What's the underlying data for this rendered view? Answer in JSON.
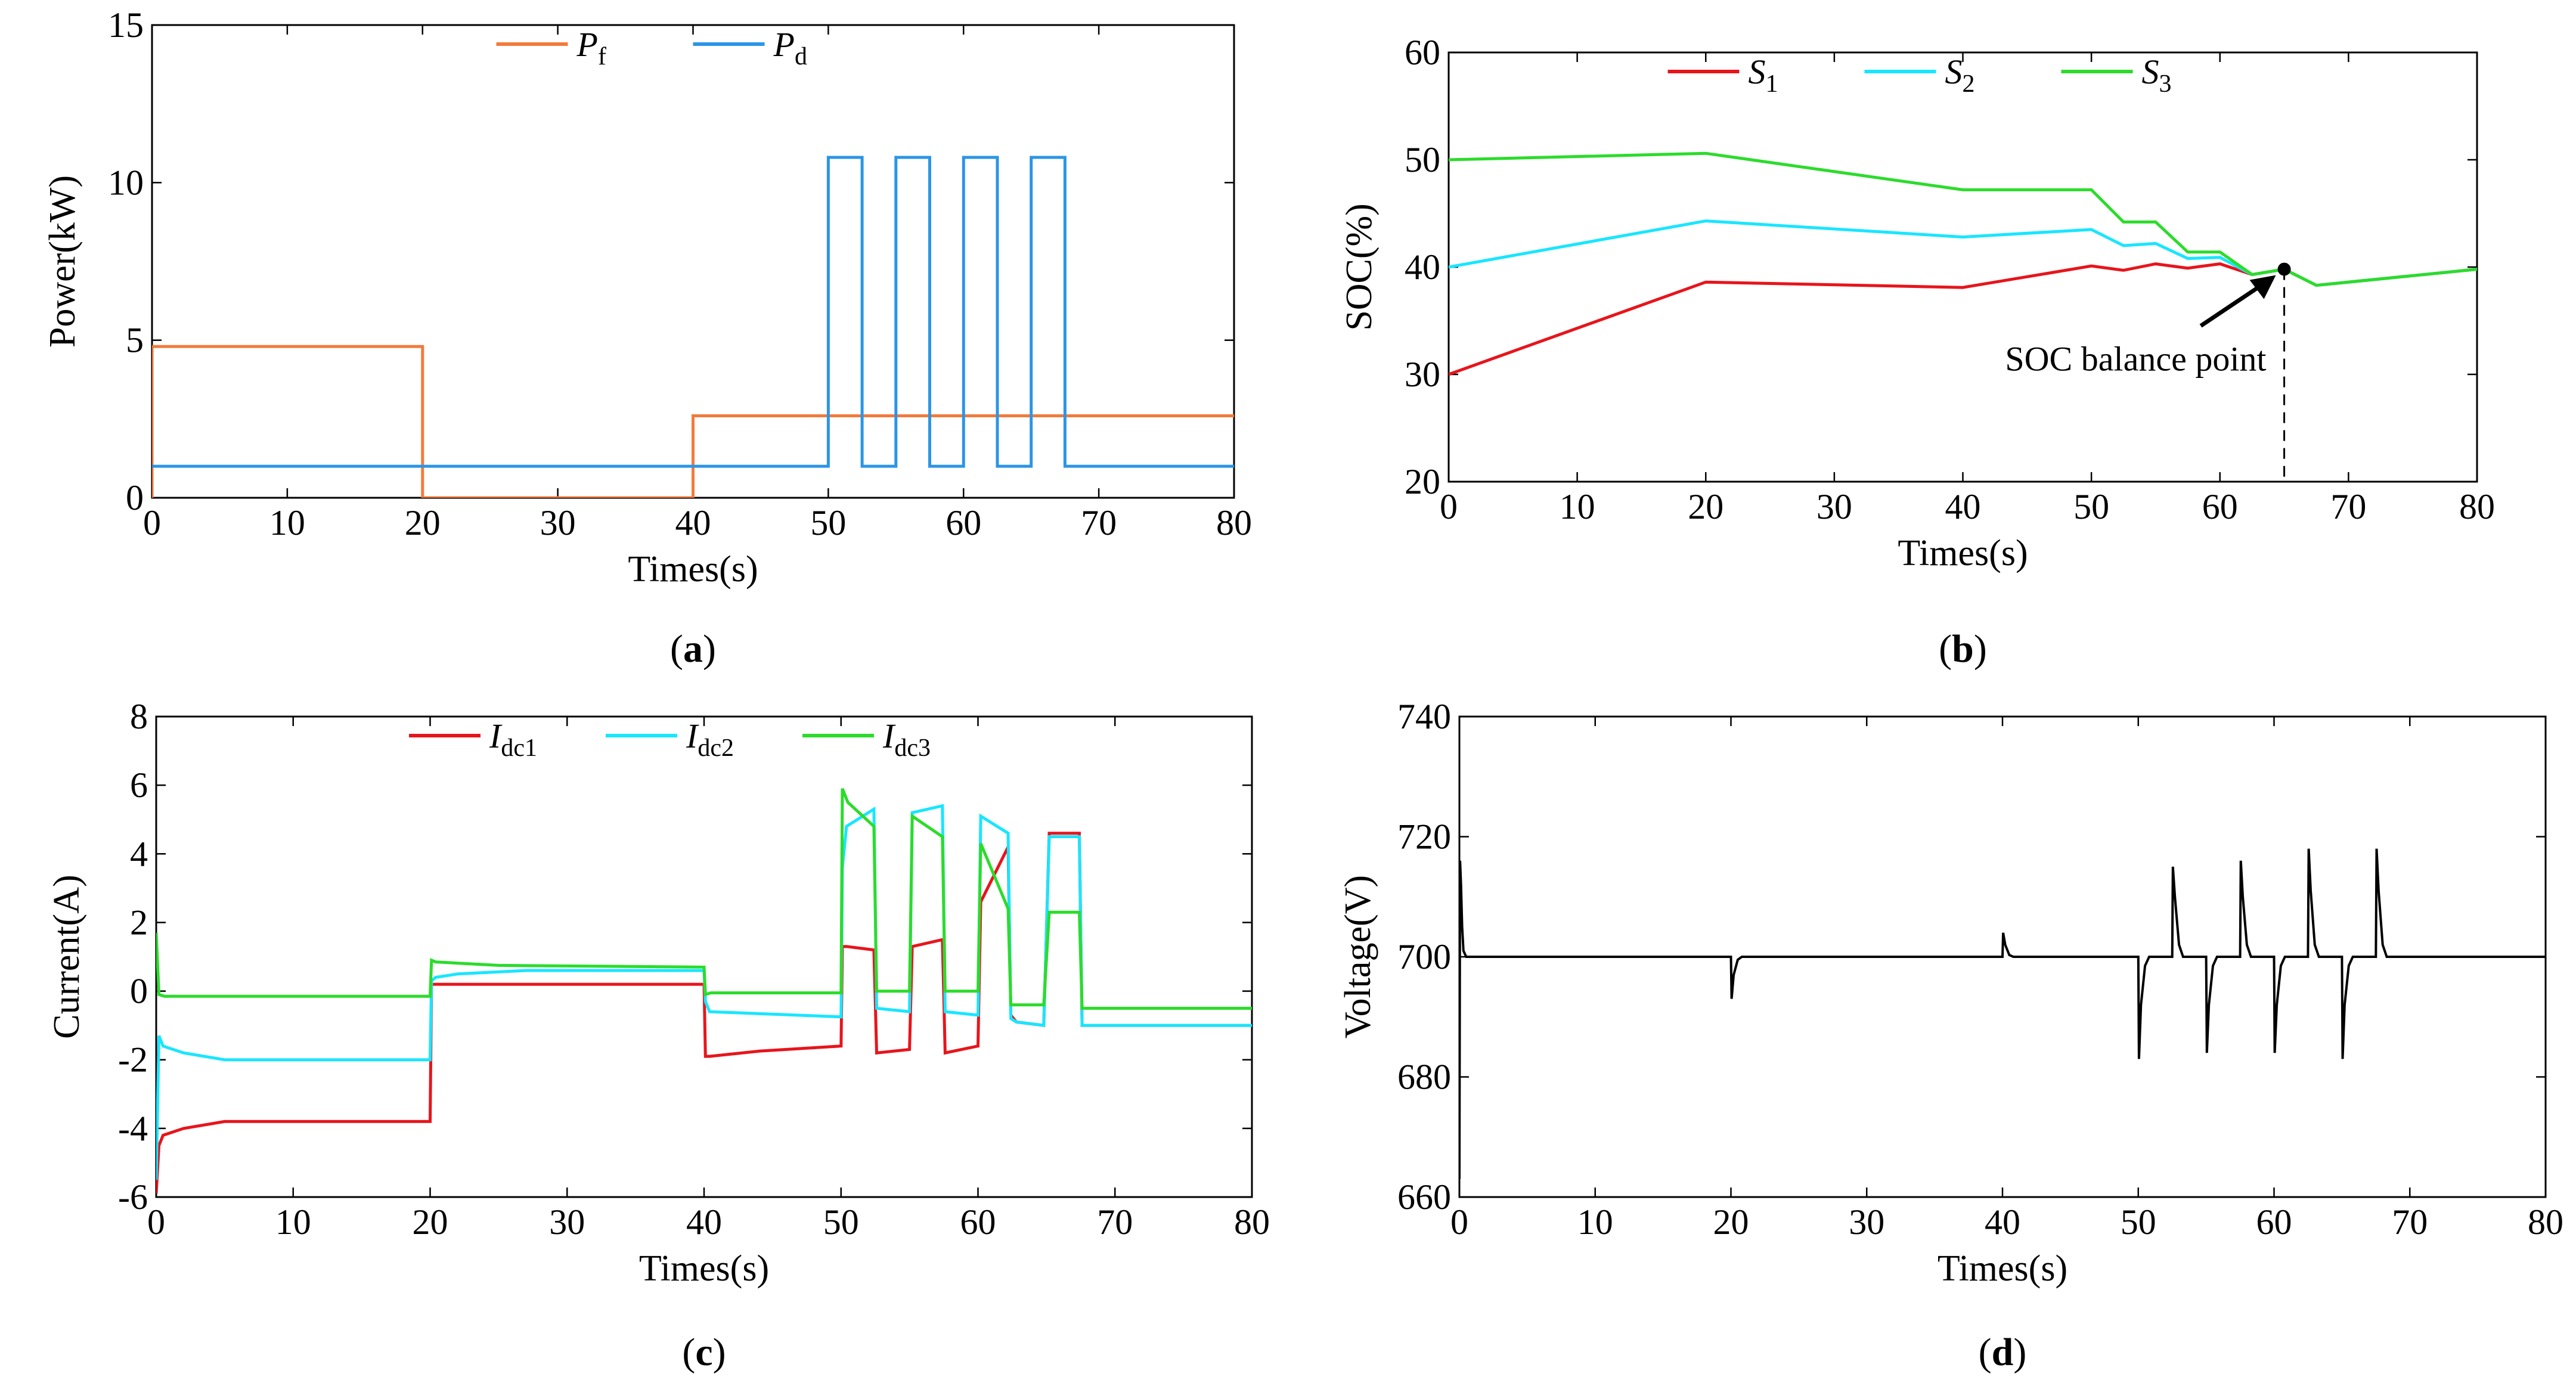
{
  "colors": {
    "orange": "#f37a3c",
    "blue": "#2b95e6",
    "red": "#e8141b",
    "cyan": "#18e6ff",
    "green": "#2bdc2b",
    "black": "#000000"
  },
  "chart_data": [
    {
      "id": "a",
      "type": "line",
      "caption": "(a)",
      "xlabel": "Times(s)",
      "ylabel": "Power(kW)",
      "xlim": [
        0,
        80
      ],
      "ylim": [
        0,
        15
      ],
      "xticks": [
        "0",
        "10",
        "20",
        "30",
        "40",
        "50",
        "60",
        "70",
        "80"
      ],
      "yticks": [
        "0",
        "5",
        "10",
        "15"
      ],
      "legend_position": "top-center",
      "series": [
        {
          "name": "P",
          "sub": "f",
          "color": "#f37a3c",
          "x": [
            0,
            0,
            20,
            20,
            40,
            40,
            80
          ],
          "y": [
            0,
            4.8,
            4.8,
            0,
            0,
            2.6,
            2.6
          ]
        },
        {
          "name": "P",
          "sub": "d",
          "color": "#2b95e6",
          "x": [
            0,
            50,
            50,
            52.5,
            52.5,
            55,
            55,
            57.5,
            57.5,
            60,
            60,
            62.5,
            62.5,
            65,
            65,
            67.5,
            67.5,
            80
          ],
          "y": [
            1,
            1,
            10.8,
            10.8,
            1,
            1,
            10.8,
            10.8,
            1,
            1,
            10.8,
            10.8,
            1,
            1,
            10.8,
            10.8,
            1,
            1
          ]
        }
      ]
    },
    {
      "id": "b",
      "type": "line",
      "caption": "(b)",
      "xlabel": "Times(s)",
      "ylabel": "SOC(%)",
      "xlim": [
        0,
        80
      ],
      "ylim": [
        20,
        60
      ],
      "xticks": [
        "0",
        "10",
        "20",
        "30",
        "40",
        "50",
        "60",
        "70",
        "80"
      ],
      "yticks": [
        "20",
        "30",
        "40",
        "50",
        "60"
      ],
      "legend_position": "top-center",
      "annotation": {
        "text": "SOC balance point",
        "x": 65,
        "y": 39.8
      },
      "series": [
        {
          "name": "S",
          "sub": "1",
          "color": "#e8141b",
          "x": [
            0,
            20,
            40,
            50,
            52.5,
            55,
            57.5,
            60,
            62.5,
            65,
            67.5,
            80
          ],
          "y": [
            30,
            38.6,
            38.1,
            40.1,
            39.7,
            40.3,
            39.9,
            40.3,
            39.3,
            39.8,
            38.3,
            39.8
          ]
        },
        {
          "name": "S",
          "sub": "2",
          "color": "#18e6ff",
          "x": [
            0,
            20,
            40,
            50,
            52.5,
            55,
            57.5,
            60,
            62.5,
            65,
            67.5,
            80
          ],
          "y": [
            40,
            44.3,
            42.8,
            43.5,
            42,
            42.2,
            40.8,
            40.9,
            39.3,
            39.8,
            38.3,
            39.8
          ]
        },
        {
          "name": "S",
          "sub": "3",
          "color": "#2bdc2b",
          "x": [
            0,
            20,
            40,
            50,
            52.5,
            55,
            57.5,
            60,
            62.5,
            65,
            67.5,
            80
          ],
          "y": [
            50,
            50.6,
            47.2,
            47.2,
            44.2,
            44.2,
            41.4,
            41.4,
            39.3,
            39.8,
            38.3,
            39.8
          ]
        }
      ]
    },
    {
      "id": "c",
      "type": "line",
      "caption": "(c)",
      "xlabel": "Times(s)",
      "ylabel": "Current(A)",
      "xlim": [
        0,
        80
      ],
      "ylim": [
        -6,
        8
      ],
      "xticks": [
        "0",
        "10",
        "20",
        "30",
        "40",
        "50",
        "60",
        "70",
        "80"
      ],
      "yticks": [
        "-6",
        "-4",
        "-2",
        "0",
        "2",
        "4",
        "6",
        "8"
      ],
      "legend_position": "top-center",
      "series": [
        {
          "name": "I",
          "sub": "dc1",
          "color": "#e8141b",
          "x": [
            0,
            0.2,
            0.5,
            2,
            5,
            20,
            20.1,
            20.3,
            40,
            40.1,
            40.4,
            44,
            50,
            50.1,
            50.4,
            52.4,
            52.6,
            55,
            55.2,
            57.4,
            57.6,
            60,
            60.2,
            62.2,
            62.4,
            62.8,
            64.8,
            65.2,
            67.4,
            67.6,
            80
          ],
          "y": [
            -5.9,
            -4.5,
            -4.2,
            -4.0,
            -3.8,
            -3.8,
            0.2,
            0.2,
            0.2,
            -1.9,
            -1.9,
            -1.75,
            -1.6,
            1.3,
            1.3,
            1.2,
            -1.8,
            -1.7,
            1.3,
            1.5,
            -1.8,
            -1.6,
            2.6,
            4.2,
            -0.7,
            -0.9,
            -1.0,
            4.6,
            4.6,
            -1.0,
            -1.0
          ]
        },
        {
          "name": "I",
          "sub": "dc2",
          "color": "#18e6ff",
          "x": [
            0,
            0.2,
            0.5,
            2,
            5,
            20,
            20.1,
            20.4,
            22,
            27,
            40,
            40.1,
            40.4,
            50,
            50.1,
            50.4,
            52.4,
            52.6,
            55,
            55.2,
            57.4,
            57.6,
            60,
            60.2,
            62.2,
            62.4,
            62.8,
            64.8,
            65.2,
            67.4,
            67.6,
            80
          ],
          "y": [
            -5.5,
            -1.3,
            -1.6,
            -1.8,
            -2.0,
            -2.0,
            0.3,
            0.4,
            0.5,
            0.6,
            0.6,
            -0.3,
            -0.6,
            -0.75,
            3.6,
            4.8,
            5.3,
            -0.5,
            -0.6,
            5.2,
            5.4,
            -0.6,
            -0.7,
            5.1,
            4.6,
            -0.8,
            -0.9,
            -1.0,
            4.5,
            4.5,
            -1.0,
            -1.0
          ]
        },
        {
          "name": "I",
          "sub": "dc3",
          "color": "#2bdc2b",
          "x": [
            0,
            0.2,
            0.6,
            5,
            20,
            20.1,
            20.4,
            25,
            40,
            40.1,
            40.5,
            50,
            50.1,
            50.5,
            52.4,
            52.6,
            55,
            55.2,
            57.4,
            57.6,
            60,
            60.2,
            62.2,
            62.4,
            64.8,
            65.2,
            67.4,
            67.6,
            80
          ],
          "y": [
            1.7,
            -0.1,
            -0.15,
            -0.15,
            -0.15,
            0.9,
            0.85,
            0.75,
            0.7,
            -0.1,
            -0.05,
            -0.05,
            5.9,
            5.5,
            4.8,
            0,
            0,
            5.1,
            4.5,
            0,
            0,
            4.3,
            2.4,
            -0.4,
            -0.4,
            2.3,
            2.3,
            -0.5,
            -0.5
          ]
        }
      ]
    },
    {
      "id": "d",
      "type": "line",
      "caption": "(d)",
      "xlabel": "Times(s)",
      "ylabel": "Voltage(V)",
      "xlim": [
        0,
        80
      ],
      "ylim": [
        660,
        740
      ],
      "xticks": [
        "0",
        "10",
        "20",
        "30",
        "40",
        "50",
        "60",
        "70",
        "80"
      ],
      "yticks": [
        "660",
        "680",
        "700",
        "720",
        "740"
      ],
      "series": [
        {
          "name": "",
          "sub": "",
          "color": "#000000",
          "x": [
            0,
            0.05,
            0.12,
            0.2,
            0.3,
            0.5,
            20,
            20.05,
            20.2,
            20.5,
            20.8,
            40,
            40.05,
            40.2,
            40.5,
            40.8,
            50,
            50.05,
            50.2,
            50.5,
            50.8,
            52.5,
            52.55,
            52.7,
            53,
            53.3,
            55,
            55.05,
            55.2,
            55.5,
            55.8,
            57.5,
            57.55,
            57.7,
            58,
            58.3,
            60,
            60.05,
            60.2,
            60.5,
            60.8,
            62.5,
            62.55,
            62.7,
            63,
            63.3,
            65,
            65.05,
            65.2,
            65.5,
            65.8,
            67.5,
            67.55,
            67.7,
            68,
            68.3,
            80
          ],
          "y": [
            663,
            716,
            712,
            705,
            701,
            700,
            700,
            693,
            697,
            699.5,
            700,
            700,
            704,
            702,
            700.3,
            700,
            700,
            683,
            692,
            698.5,
            700,
            700,
            715,
            710,
            702,
            700,
            700,
            684,
            692,
            698.5,
            700,
            700,
            716,
            710,
            702,
            700,
            700,
            684,
            692,
            698.5,
            700,
            700,
            718,
            711,
            702,
            700,
            700,
            683,
            692,
            698.5,
            700,
            700,
            718,
            711,
            702,
            700,
            700
          ]
        }
      ]
    }
  ]
}
